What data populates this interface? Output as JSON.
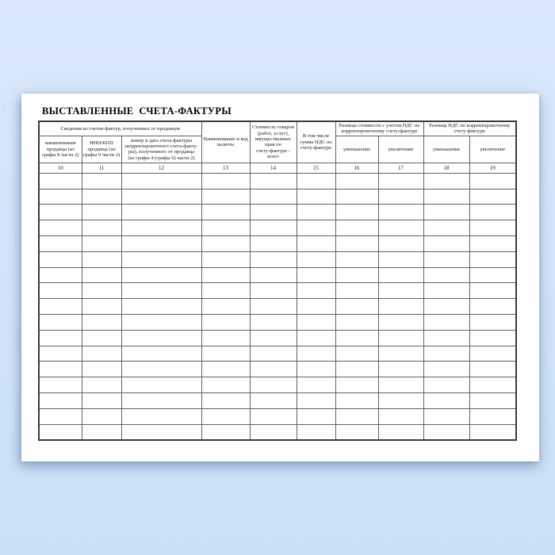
{
  "page": {
    "title": "ВЫСТАВЛЕННЫЕ  СЧЕТА-ФАКТУРЫ"
  },
  "table": {
    "groups": {
      "seller_info": "Сведения из счетов-фактур, полученных от продавцов",
      "cost_diff": "Разница стоимости с учетом НДС  по\nкорректировочному  счету-фактуре",
      "vat_diff": "Разница НДС  по корректировочному\nсчету-фактуре"
    },
    "columns": [
      {
        "num": "10",
        "label": "наименование\nпродавца (из\nграфы 8 части 2)"
      },
      {
        "num": "11",
        "label": "ИНН/КПП\nпродавца (из\nграфы 9 части 2)"
      },
      {
        "num": "12",
        "label": "номер и дата счета-фактуры\n(корректировочного счета-факту-\nры), полученного от продавца\n(из графы 4 (графы 6) части 2)"
      },
      {
        "num": "13",
        "label": "Наименование и код\nвалюты"
      },
      {
        "num": "14",
        "label": "Стоимость товаров\n(работ, услуг),\nимущественных\nправ по\nсчету-фактуре -\nвсего"
      },
      {
        "num": "15",
        "label": "В том числе\nсумма НДС по\nсчету-фактуре"
      },
      {
        "num": "16",
        "label": "уменьшение"
      },
      {
        "num": "17",
        "label": "увеличение"
      },
      {
        "num": "18",
        "label": "уменьшение"
      },
      {
        "num": "19",
        "label": "увеличение"
      }
    ],
    "empty_rows": 17
  },
  "colors": {
    "background_top": "#d9e9fb",
    "background_bottom": "#cbe0f7",
    "paper": "#ffffff",
    "grid_line": "#616161",
    "outer_border": "#3a3a3a",
    "text": "#1a1a1a"
  }
}
